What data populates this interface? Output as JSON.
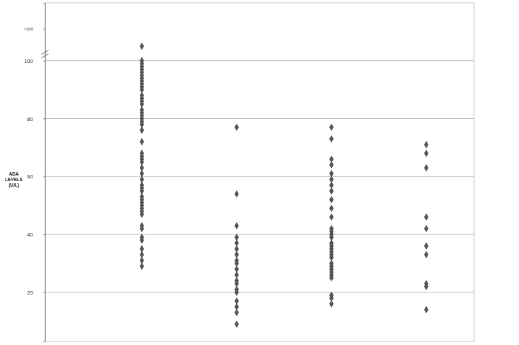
{
  "chart_data": {
    "type": "scatter",
    "y_label": "ADA LEVELS (U/L)",
    "categories": [
      null,
      null,
      null,
      null
    ],
    "values": [
      [
        105,
        100,
        99,
        98,
        97,
        96,
        95,
        94,
        93,
        92,
        91,
        90,
        88,
        87,
        86,
        85,
        83,
        82,
        81,
        80,
        79,
        78,
        76,
        72,
        68,
        67,
        66,
        65,
        63,
        61,
        59,
        57,
        56,
        55,
        53,
        52,
        51,
        50,
        49,
        48,
        47,
        43,
        42,
        39,
        38,
        35,
        33,
        31,
        29
      ],
      [
        77,
        54,
        43,
        39,
        37,
        35,
        33,
        31,
        30,
        28,
        26,
        24,
        23,
        21,
        20,
        17,
        15,
        13,
        9
      ],
      [
        77,
        73,
        66,
        64,
        61,
        59,
        57,
        55,
        52,
        49,
        46,
        42,
        41,
        40,
        39,
        37,
        36,
        35,
        34,
        33,
        32,
        30,
        29,
        28,
        27,
        26,
        25,
        19,
        18,
        16
      ],
      [
        71,
        68,
        63,
        46,
        42,
        36,
        33,
        23,
        22,
        14
      ]
    ],
    "color": "#555555",
    "marker": "diamond",
    "ylim": [
      3,
      120
    ],
    "yticks": [
      20,
      40,
      60,
      80,
      100,
      {
        "value": 111,
        "label": ">100"
      }
    ],
    "grid": true,
    "tick_labels": "y"
  }
}
